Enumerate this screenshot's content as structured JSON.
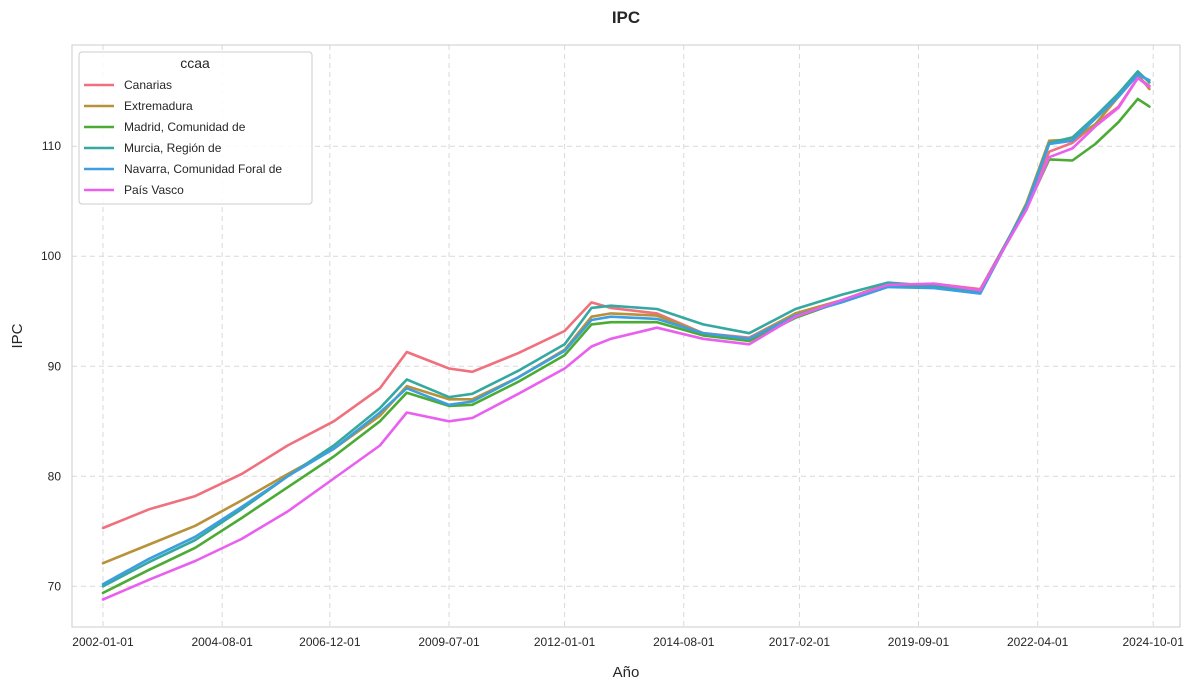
{
  "chart_data": {
    "type": "line",
    "title": "IPC",
    "xlabel": "Año",
    "ylabel": "IPC",
    "x_ticks": [
      "2002-01-01",
      "2004-08-01",
      "2006-12-01",
      "2009-07-01",
      "2012-01-01",
      "2014-08-01",
      "2017-02-01",
      "2019-09-01",
      "2022-04-01",
      "2024-10-01"
    ],
    "y_ticks": [
      70,
      80,
      90,
      100,
      110
    ],
    "xlim": [
      "2001-05-01",
      "2025-05-01"
    ],
    "ylim": [
      66.3,
      119.2
    ],
    "grid": true,
    "legend": {
      "title": "ccaa",
      "placement": "top-left"
    },
    "series": [
      {
        "name": "Canarias",
        "color": "#f0707e",
        "points": [
          [
            "2002-01-01",
            75.3
          ],
          [
            "2003-01-01",
            77.0
          ],
          [
            "2004-01-01",
            78.2
          ],
          [
            "2005-01-01",
            80.2
          ],
          [
            "2006-01-01",
            82.8
          ],
          [
            "2007-01-01",
            85.0
          ],
          [
            "2008-01-01",
            88.0
          ],
          [
            "2008-08-01",
            91.3
          ],
          [
            "2009-07-01",
            89.8
          ],
          [
            "2010-01-01",
            89.5
          ],
          [
            "2011-01-01",
            91.2
          ],
          [
            "2012-01-01",
            93.2
          ],
          [
            "2012-08-01",
            95.8
          ],
          [
            "2013-01-01",
            95.3
          ],
          [
            "2014-01-01",
            94.8
          ],
          [
            "2015-01-01",
            93.0
          ],
          [
            "2016-01-01",
            92.6
          ],
          [
            "2017-01-01",
            94.8
          ],
          [
            "2018-01-01",
            96.0
          ],
          [
            "2019-01-01",
            97.3
          ],
          [
            "2020-01-01",
            97.5
          ],
          [
            "2021-01-01",
            97.0
          ],
          [
            "2021-09-01",
            102.0
          ],
          [
            "2022-01-01",
            104.5
          ],
          [
            "2022-07-01",
            109.5
          ],
          [
            "2023-01-01",
            110.3
          ],
          [
            "2023-07-01",
            112.0
          ],
          [
            "2024-01-01",
            113.6
          ],
          [
            "2024-06-01",
            116.2
          ],
          [
            "2024-09-01",
            115.5
          ]
        ]
      },
      {
        "name": "Extremadura",
        "color": "#b8923a",
        "points": [
          [
            "2002-01-01",
            72.1
          ],
          [
            "2003-01-01",
            73.8
          ],
          [
            "2004-01-01",
            75.5
          ],
          [
            "2005-01-01",
            77.8
          ],
          [
            "2006-01-01",
            80.2
          ],
          [
            "2007-01-01",
            82.5
          ],
          [
            "2008-01-01",
            85.5
          ],
          [
            "2008-08-01",
            88.2
          ],
          [
            "2009-07-01",
            87.0
          ],
          [
            "2010-01-01",
            87.0
          ],
          [
            "2011-01-01",
            89.0
          ],
          [
            "2012-01-01",
            91.5
          ],
          [
            "2012-08-01",
            94.5
          ],
          [
            "2013-01-01",
            94.8
          ],
          [
            "2014-01-01",
            94.6
          ],
          [
            "2015-01-01",
            93.0
          ],
          [
            "2016-01-01",
            92.5
          ],
          [
            "2017-01-01",
            94.8
          ],
          [
            "2018-01-01",
            96.0
          ],
          [
            "2019-01-01",
            97.5
          ],
          [
            "2020-01-01",
            97.2
          ],
          [
            "2021-01-01",
            96.8
          ],
          [
            "2021-09-01",
            102.0
          ],
          [
            "2022-01-01",
            104.8
          ],
          [
            "2022-07-01",
            110.5
          ],
          [
            "2023-01-01",
            110.6
          ],
          [
            "2023-07-01",
            112.0
          ],
          [
            "2024-01-01",
            114.5
          ],
          [
            "2024-06-01",
            116.5
          ],
          [
            "2024-09-01",
            115.2
          ]
        ]
      },
      {
        "name": "Madrid, Comunidad de",
        "color": "#4bab34",
        "points": [
          [
            "2002-01-01",
            69.4
          ],
          [
            "2003-01-01",
            71.5
          ],
          [
            "2004-01-01",
            73.5
          ],
          [
            "2005-01-01",
            76.2
          ],
          [
            "2006-01-01",
            79.0
          ],
          [
            "2007-01-01",
            81.8
          ],
          [
            "2008-01-01",
            85.0
          ],
          [
            "2008-08-01",
            87.6
          ],
          [
            "2009-07-01",
            86.4
          ],
          [
            "2010-01-01",
            86.5
          ],
          [
            "2011-01-01",
            88.6
          ],
          [
            "2012-01-01",
            91.0
          ],
          [
            "2012-08-01",
            93.8
          ],
          [
            "2013-01-01",
            94.0
          ],
          [
            "2014-01-01",
            94.0
          ],
          [
            "2015-01-01",
            92.8
          ],
          [
            "2016-01-01",
            92.3
          ],
          [
            "2017-01-01",
            94.4
          ],
          [
            "2018-01-01",
            95.9
          ],
          [
            "2019-01-01",
            97.3
          ],
          [
            "2020-01-01",
            97.4
          ],
          [
            "2021-01-01",
            96.9
          ],
          [
            "2021-09-01",
            101.8
          ],
          [
            "2022-01-01",
            104.3
          ],
          [
            "2022-07-01",
            108.8
          ],
          [
            "2023-01-01",
            108.7
          ],
          [
            "2023-07-01",
            110.2
          ],
          [
            "2024-01-01",
            112.2
          ],
          [
            "2024-06-01",
            114.3
          ],
          [
            "2024-09-01",
            113.6
          ]
        ]
      },
      {
        "name": "Murcia, Región de",
        "color": "#35a9a0",
        "points": [
          [
            "2002-01-01",
            70.0
          ],
          [
            "2003-01-01",
            72.2
          ],
          [
            "2004-01-01",
            74.2
          ],
          [
            "2005-01-01",
            77.0
          ],
          [
            "2006-01-01",
            80.0
          ],
          [
            "2007-01-01",
            82.8
          ],
          [
            "2008-01-01",
            86.2
          ],
          [
            "2008-08-01",
            88.8
          ],
          [
            "2009-07-01",
            87.2
          ],
          [
            "2010-01-01",
            87.5
          ],
          [
            "2011-01-01",
            89.6
          ],
          [
            "2012-01-01",
            92.0
          ],
          [
            "2012-08-01",
            95.3
          ],
          [
            "2013-01-01",
            95.5
          ],
          [
            "2014-01-01",
            95.2
          ],
          [
            "2015-01-01",
            93.8
          ],
          [
            "2016-01-01",
            93.0
          ],
          [
            "2017-01-01",
            95.2
          ],
          [
            "2018-01-01",
            96.5
          ],
          [
            "2019-01-01",
            97.6
          ],
          [
            "2020-01-01",
            97.3
          ],
          [
            "2021-01-01",
            96.8
          ],
          [
            "2021-09-01",
            102.0
          ],
          [
            "2022-01-01",
            104.6
          ],
          [
            "2022-07-01",
            110.3
          ],
          [
            "2023-01-01",
            110.8
          ],
          [
            "2023-07-01",
            112.7
          ],
          [
            "2024-01-01",
            114.8
          ],
          [
            "2024-06-01",
            116.8
          ],
          [
            "2024-09-01",
            115.8
          ]
        ]
      },
      {
        "name": "Navarra, Comunidad Foral de",
        "color": "#3d9ee0",
        "points": [
          [
            "2002-01-01",
            70.2
          ],
          [
            "2003-01-01",
            72.5
          ],
          [
            "2004-01-01",
            74.5
          ],
          [
            "2005-01-01",
            77.2
          ],
          [
            "2006-01-01",
            80.0
          ],
          [
            "2007-01-01",
            82.5
          ],
          [
            "2008-01-01",
            85.8
          ],
          [
            "2008-08-01",
            88.0
          ],
          [
            "2009-07-01",
            86.5
          ],
          [
            "2010-01-01",
            86.8
          ],
          [
            "2011-01-01",
            89.0
          ],
          [
            "2012-01-01",
            91.4
          ],
          [
            "2012-08-01",
            94.2
          ],
          [
            "2013-01-01",
            94.5
          ],
          [
            "2014-01-01",
            94.3
          ],
          [
            "2015-01-01",
            93.0
          ],
          [
            "2016-01-01",
            92.5
          ],
          [
            "2017-01-01",
            94.6
          ],
          [
            "2018-01-01",
            95.8
          ],
          [
            "2019-01-01",
            97.2
          ],
          [
            "2020-01-01",
            97.1
          ],
          [
            "2021-01-01",
            96.6
          ],
          [
            "2021-09-01",
            101.9
          ],
          [
            "2022-01-01",
            104.5
          ],
          [
            "2022-07-01",
            110.2
          ],
          [
            "2023-01-01",
            110.5
          ],
          [
            "2023-07-01",
            112.5
          ],
          [
            "2024-01-01",
            114.5
          ],
          [
            "2024-06-01",
            116.5
          ],
          [
            "2024-09-01",
            116.0
          ]
        ]
      },
      {
        "name": "País Vasco",
        "color": "#e960ef",
        "points": [
          [
            "2002-01-01",
            68.8
          ],
          [
            "2003-01-01",
            70.6
          ],
          [
            "2004-01-01",
            72.3
          ],
          [
            "2005-01-01",
            74.3
          ],
          [
            "2006-01-01",
            76.8
          ],
          [
            "2007-01-01",
            79.8
          ],
          [
            "2008-01-01",
            82.8
          ],
          [
            "2008-08-01",
            85.8
          ],
          [
            "2009-07-01",
            85.0
          ],
          [
            "2010-01-01",
            85.3
          ],
          [
            "2011-01-01",
            87.5
          ],
          [
            "2012-01-01",
            89.8
          ],
          [
            "2012-08-01",
            91.8
          ],
          [
            "2013-01-01",
            92.5
          ],
          [
            "2014-01-01",
            93.5
          ],
          [
            "2015-01-01",
            92.5
          ],
          [
            "2016-01-01",
            92.0
          ],
          [
            "2017-01-01",
            94.5
          ],
          [
            "2018-01-01",
            96.0
          ],
          [
            "2019-01-01",
            97.4
          ],
          [
            "2020-01-01",
            97.5
          ],
          [
            "2021-01-01",
            96.9
          ],
          [
            "2021-09-01",
            101.8
          ],
          [
            "2022-01-01",
            104.2
          ],
          [
            "2022-07-01",
            109.0
          ],
          [
            "2023-01-01",
            109.8
          ],
          [
            "2023-07-01",
            111.8
          ],
          [
            "2024-01-01",
            113.5
          ],
          [
            "2024-06-01",
            116.2
          ],
          [
            "2024-09-01",
            115.4
          ]
        ]
      }
    ]
  }
}
